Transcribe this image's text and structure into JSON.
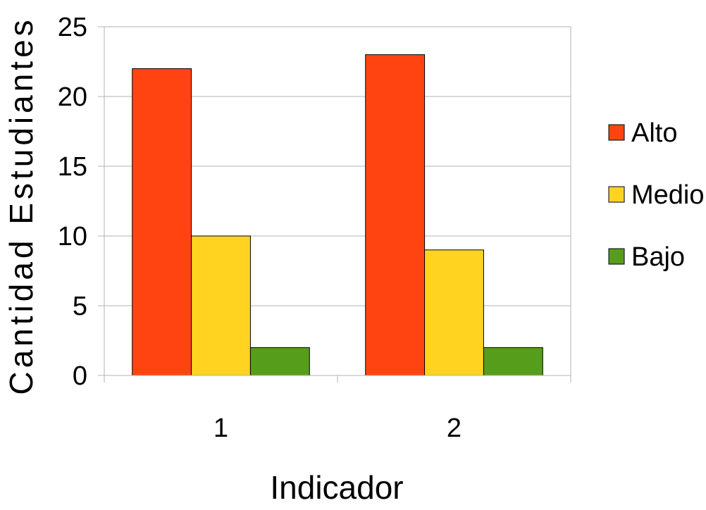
{
  "chart_data": {
    "type": "bar",
    "categories": [
      "1",
      "2"
    ],
    "series": [
      {
        "name": "Alto",
        "color": "#ff4411",
        "values": [
          22,
          23
        ]
      },
      {
        "name": "Medio",
        "color": "#ffd320",
        "values": [
          10,
          9
        ]
      },
      {
        "name": "Bajo",
        "color": "#579d1c",
        "values": [
          2,
          2
        ]
      }
    ],
    "title": "",
    "xlabel": "Indicador",
    "ylabel": "Cantidad Estudiantes",
    "ylim": [
      0,
      25
    ],
    "yticks": [
      0,
      5,
      10,
      15,
      20,
      25
    ],
    "grid": true,
    "legend_position": "right"
  }
}
